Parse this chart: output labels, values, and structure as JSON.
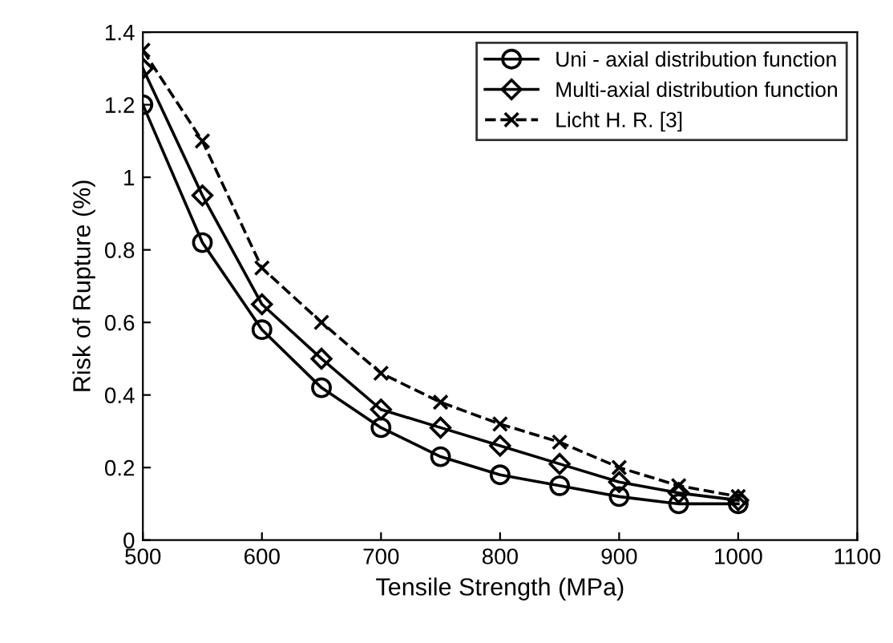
{
  "chart_data": {
    "type": "line",
    "xlabel": "Tensile Strength (MPa)",
    "ylabel": "Risk of Rupture (%)",
    "x": [
      500,
      550,
      600,
      650,
      700,
      750,
      800,
      850,
      900,
      950,
      1000
    ],
    "series": [
      {
        "name": "Uni - axial distribution function",
        "color": "#000000",
        "marker": "circle",
        "line_style": "solid",
        "values": [
          1.2,
          0.82,
          0.58,
          0.42,
          0.31,
          0.23,
          0.18,
          0.15,
          0.12,
          0.1,
          0.1
        ]
      },
      {
        "name": "Multi-axial distribution function",
        "color": "#000000",
        "marker": "diamond",
        "line_style": "solid",
        "values": [
          1.3,
          0.95,
          0.65,
          0.5,
          0.36,
          0.31,
          0.26,
          0.21,
          0.16,
          0.13,
          0.11
        ]
      },
      {
        "name": "Licht H. R. [3]",
        "color": "#000000",
        "marker": "cross",
        "line_style": "dashed",
        "values": [
          1.35,
          1.1,
          0.75,
          0.6,
          0.46,
          0.38,
          0.32,
          0.27,
          0.2,
          0.15,
          0.12
        ]
      }
    ],
    "xlim": [
      500,
      1100
    ],
    "xticks": [
      500,
      600,
      700,
      800,
      900,
      1000,
      1100
    ],
    "ylim": [
      0,
      1.4
    ],
    "yticks": [
      0,
      0.2,
      0.4,
      0.6,
      0.8,
      1,
      1.2,
      1.4
    ],
    "grid": false,
    "legend": "top right"
  }
}
